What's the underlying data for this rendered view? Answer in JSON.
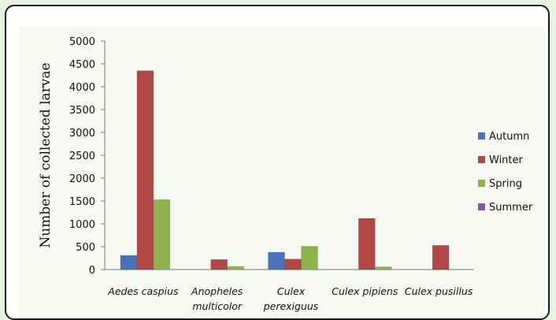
{
  "chart_data": {
    "type": "bar",
    "title": "",
    "xlabel": "",
    "ylabel": "Number of collected larvae",
    "ylim": [
      0,
      5000
    ],
    "yticks": [
      0,
      500,
      1000,
      1500,
      2000,
      2500,
      3000,
      3500,
      4000,
      4500,
      5000
    ],
    "categories": [
      [
        "Aedes caspius"
      ],
      [
        "Anopheles",
        "multicolor"
      ],
      [
        "Culex",
        "perexiguus"
      ],
      [
        "Culex pipiens"
      ],
      [
        "Culex pusillus"
      ]
    ],
    "series": [
      {
        "name": "Autumn",
        "color": "#4a72b8",
        "values": [
          310,
          0,
          380,
          0,
          0
        ]
      },
      {
        "name": "Winter",
        "color": "#b04744",
        "values": [
          4350,
          220,
          230,
          1120,
          530
        ]
      },
      {
        "name": "Spring",
        "color": "#8eb34e",
        "values": [
          1530,
          70,
          510,
          60,
          0
        ]
      },
      {
        "name": "Summer",
        "color": "#7a5aa0",
        "values": [
          0,
          0,
          0,
          0,
          0
        ]
      }
    ],
    "legend_position": "right",
    "grid": false
  }
}
